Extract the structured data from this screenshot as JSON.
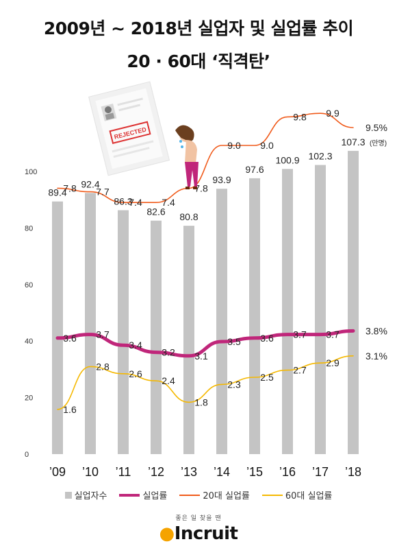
{
  "title_line1": "2009년 ~ 2018년 실업자 및 실업률 추이",
  "title_line2": "20 · 60대 ‘직격탄’",
  "illustration": {
    "stamp_text": "REJECTED"
  },
  "chart_data": {
    "type": "bar+line",
    "categories": [
      "’09",
      "’10",
      "’11",
      "’12",
      "’13",
      "’14",
      "’15",
      "’16",
      "’17",
      "’18"
    ],
    "y_ticks": [
      0,
      20,
      40,
      60,
      80,
      100
    ],
    "ylim": [
      0,
      110
    ],
    "bar_unit": "(만명)",
    "series": [
      {
        "name": "실업자수",
        "kind": "bar",
        "color": "#c4c4c4",
        "values": [
          89.4,
          92.4,
          86.3,
          82.6,
          80.8,
          93.9,
          97.6,
          100.9,
          102.3,
          107.3
        ],
        "labels": [
          "89.4",
          "92.4",
          "86.3",
          "82.6",
          "80.8",
          "93.9",
          "97.6",
          "100.9",
          "102.3",
          "107.3"
        ]
      },
      {
        "name": "실업률",
        "kind": "line",
        "color": "#c0267a",
        "values": [
          3.6,
          3.7,
          3.4,
          3.2,
          3.1,
          3.5,
          3.6,
          3.7,
          3.7,
          3.8
        ],
        "labels": [
          "3.6",
          "3.7",
          "3.4",
          "3.2",
          "3.1",
          "3.5",
          "3.6",
          "3.7",
          "3.7",
          "3.8%"
        ]
      },
      {
        "name": "20대 실업률",
        "kind": "line",
        "color": "#f05a1a",
        "values": [
          7.8,
          7.7,
          7.4,
          7.4,
          7.8,
          9.0,
          9.0,
          9.8,
          9.9,
          9.5
        ],
        "labels": [
          "7.8",
          "7.7",
          "7.4",
          "7.4",
          "7.8",
          "9.0",
          "9.0",
          "9.8",
          "9.9",
          "9.5%"
        ]
      },
      {
        "name": "60대 실업률",
        "kind": "line",
        "color": "#f5b800",
        "values": [
          1.6,
          2.8,
          2.6,
          2.4,
          1.8,
          2.3,
          2.5,
          2.7,
          2.9,
          3.1
        ],
        "labels": [
          "1.6",
          "2.8",
          "2.6",
          "2.4",
          "1.8",
          "2.3",
          "2.5",
          "2.7",
          "2.9",
          "3.1%"
        ]
      }
    ]
  },
  "footer": {
    "tagline": "좋은 일 찾을 땐",
    "brand": "Incruit"
  }
}
